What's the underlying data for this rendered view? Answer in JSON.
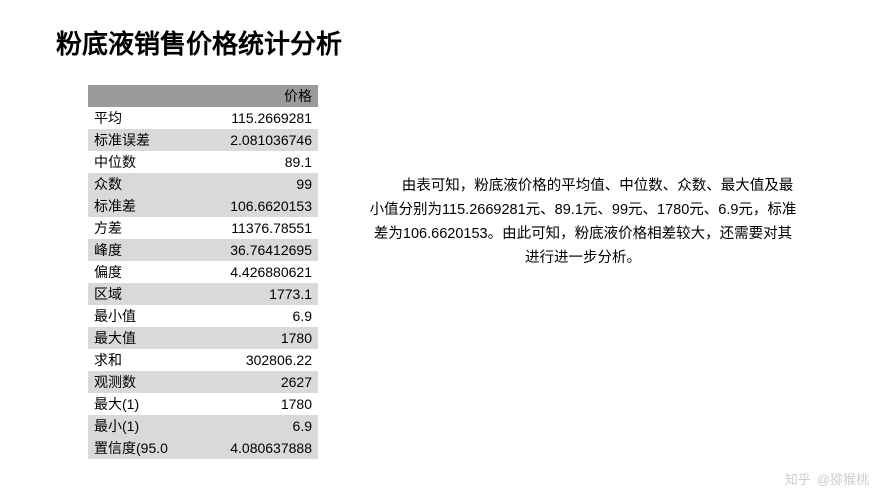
{
  "title": "粉底液销售价格统计分析",
  "table": {
    "header": "价格",
    "rows": [
      {
        "label": "平均",
        "value": "115.2669281"
      },
      {
        "label": "标准误差",
        "value": "2.081036746"
      },
      {
        "label": "中位数",
        "value": "89.1"
      },
      {
        "label": "众数",
        "value": "99"
      },
      {
        "label": "标准差",
        "value": "106.6620153"
      },
      {
        "label": "方差",
        "value": "11376.78551"
      },
      {
        "label": "峰度",
        "value": "36.76412695"
      },
      {
        "label": "偏度",
        "value": "4.426880621"
      },
      {
        "label": "区域",
        "value": "1773.1"
      },
      {
        "label": "最小值",
        "value": "6.9"
      },
      {
        "label": "最大值",
        "value": "1780"
      },
      {
        "label": "求和",
        "value": "302806.22"
      },
      {
        "label": "观测数",
        "value": "2627"
      },
      {
        "label": "最大(1)",
        "value": "1780"
      },
      {
        "label": "最小(1)",
        "value": "6.9"
      },
      {
        "label": "置信度(95.0",
        "value": "4.080637888"
      }
    ]
  },
  "description": "由表可知，粉底液价格的平均值、中位数、众数、最大值及最小值分别为115.2669281元、89.1元、99元、1780元、6.9元，标准差为106.6620153。由此可知，粉底液价格相差较大，还需要对其进行进一步分析。",
  "watermark": {
    "platform": "知乎",
    "author": "@猕猴桃"
  }
}
